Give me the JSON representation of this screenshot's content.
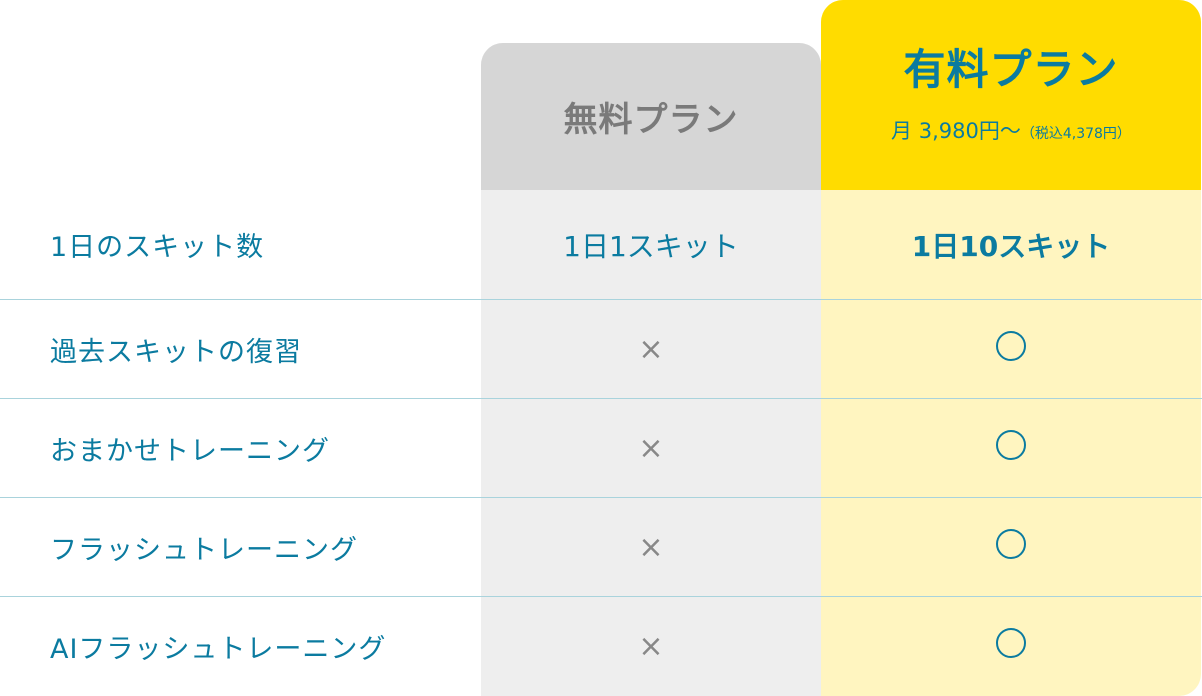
{
  "plans": {
    "free": {
      "title": "無料プラン"
    },
    "paid": {
      "title": "有料プラン",
      "price": "月 3,980円〜",
      "tax_note": "（税込4,378円）"
    }
  },
  "rows": [
    {
      "label": "1日のスキット数",
      "free": "1日1スキット",
      "paid": "1日10スキット"
    },
    {
      "label": "過去スキットの復習",
      "free": "×",
      "paid": "○"
    },
    {
      "label": "おまかせトレーニング",
      "free": "×",
      "paid": "○"
    },
    {
      "label": "フラッシュトレーニング",
      "free": "×",
      "paid": "○"
    },
    {
      "label": "AIフラッシュトレーニング",
      "free": "×",
      "paid": "○"
    }
  ],
  "colors": {
    "accent": "#0b7ba0",
    "paid_header": "#ffdc00",
    "paid_body": "#fff5c0",
    "free_header": "#d6d6d6",
    "free_body": "#eeeeee"
  }
}
